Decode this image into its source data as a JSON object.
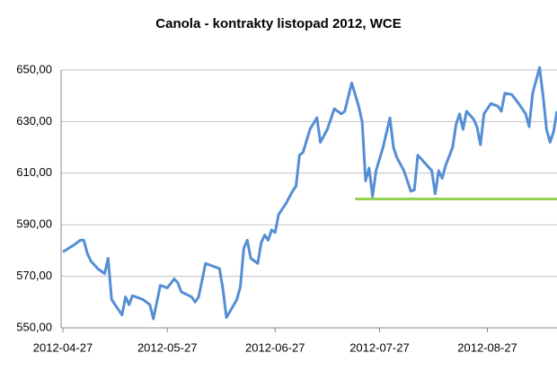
{
  "chart_data": {
    "type": "line",
    "title": "Canola - kontrakty listopad 2012, WCE",
    "x": [
      "2012-04-27",
      "2012-04-30",
      "2012-05-02",
      "2012-05-03",
      "2012-05-04",
      "2012-05-05",
      "2012-05-07",
      "2012-05-08",
      "2012-05-09",
      "2012-05-10",
      "2012-05-11",
      "2012-05-13",
      "2012-05-14",
      "2012-05-15",
      "2012-05-16",
      "2012-05-17",
      "2012-05-20",
      "2012-05-22",
      "2012-05-23",
      "2012-05-24",
      "2012-05-25",
      "2012-05-27",
      "2012-05-29",
      "2012-05-30",
      "2012-05-31",
      "2012-06-03",
      "2012-06-04",
      "2012-06-05",
      "2012-06-07",
      "2012-06-09",
      "2012-06-11",
      "2012-06-12",
      "2012-06-13",
      "2012-06-16",
      "2012-06-17",
      "2012-06-18",
      "2012-06-19",
      "2012-06-20",
      "2012-06-22",
      "2012-06-23",
      "2012-06-24",
      "2012-06-25",
      "2012-06-26",
      "2012-06-27",
      "2012-06-28",
      "2012-06-30",
      "2012-07-02",
      "2012-07-03",
      "2012-07-04",
      "2012-07-05",
      "2012-07-07",
      "2012-07-09",
      "2012-07-10",
      "2012-07-12",
      "2012-07-14",
      "2012-07-16",
      "2012-07-17",
      "2012-07-19",
      "2012-07-21",
      "2012-07-22",
      "2012-07-23",
      "2012-07-24",
      "2012-07-25",
      "2012-07-26",
      "2012-07-28",
      "2012-07-30",
      "2012-07-31",
      "2012-08-01",
      "2012-08-03",
      "2012-08-05",
      "2012-08-06",
      "2012-08-07",
      "2012-08-09",
      "2012-08-11",
      "2012-08-12",
      "2012-08-13",
      "2012-08-14",
      "2012-08-15",
      "2012-08-17",
      "2012-08-18",
      "2012-08-19",
      "2012-08-20",
      "2012-08-21",
      "2012-08-23",
      "2012-08-24",
      "2012-08-25",
      "2012-08-26",
      "2012-08-28",
      "2012-08-30",
      "2012-08-31",
      "2012-09-01",
      "2012-09-03",
      "2012-09-05",
      "2012-09-07",
      "2012-09-08",
      "2012-09-09",
      "2012-09-11",
      "2012-09-12",
      "2012-09-13",
      "2012-09-14",
      "2012-09-15",
      "2012-09-16"
    ],
    "series": [
      {
        "color": "#558ed5",
        "values": [
          579.5,
          582,
          584,
          584,
          579,
          576,
          573,
          572,
          571,
          577,
          561,
          557,
          555,
          562,
          559,
          562.5,
          561,
          559,
          553.5,
          560,
          566.5,
          565.5,
          569,
          567.5,
          564,
          562,
          560,
          562,
          575,
          574,
          573,
          565,
          554,
          561,
          566,
          581,
          584,
          577,
          575,
          583,
          586,
          584,
          588,
          587,
          594,
          598,
          603,
          605,
          617,
          618,
          627,
          631.5,
          622,
          627,
          635,
          633,
          634,
          645,
          636,
          630,
          607,
          612,
          601,
          611,
          620,
          631.5,
          620,
          616,
          611,
          603,
          603.5,
          617,
          614,
          611,
          602,
          611,
          608,
          613,
          620,
          629,
          633,
          627,
          634,
          631,
          628,
          621,
          633,
          637,
          636,
          634,
          641,
          640.5,
          637,
          633,
          628,
          641,
          651,
          640,
          627,
          622,
          626,
          634
        ]
      }
    ],
    "reference_lines": [
      {
        "value": 600,
        "color": "#92d050",
        "x": [
          "2012-07-20",
          "2012-09-16"
        ]
      }
    ],
    "xlim": [
      "2012-04-27",
      "2012-09-16"
    ],
    "xticks": [
      "2012-04-27",
      "2012-05-27",
      "2012-06-27",
      "2012-07-27",
      "2012-08-27"
    ],
    "ylim": [
      550,
      650
    ],
    "yticks": [
      {
        "value": 550,
        "label": "550,00"
      },
      {
        "value": 570,
        "label": "570,00"
      },
      {
        "value": 590,
        "label": "590,00"
      },
      {
        "value": 610,
        "label": "610,00"
      },
      {
        "value": 630,
        "label": "630,00"
      },
      {
        "value": 650,
        "label": "650,00"
      }
    ],
    "grid": true
  }
}
